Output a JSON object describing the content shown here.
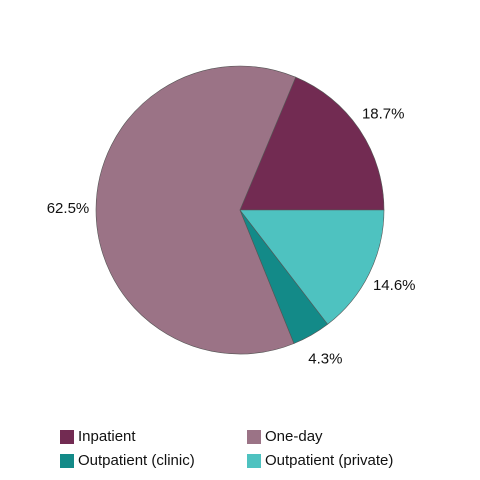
{
  "chart_data": {
    "type": "pie",
    "categories": [
      "Inpatient",
      "One-day",
      "Outpatient (clinic)",
      "Outpatient (private)"
    ],
    "values": [
      18.7,
      62.5,
      4.3,
      14.6
    ],
    "value_labels": [
      "18.7%",
      "62.5%",
      "4.3%",
      "14.6%"
    ],
    "colors": [
      "#722b52",
      "#9b7386",
      "#138a88",
      "#4ec2c0"
    ]
  }
}
